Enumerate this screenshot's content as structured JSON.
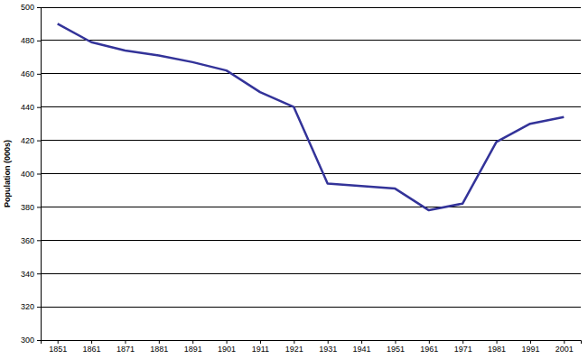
{
  "chart_data": {
    "type": "line",
    "y_label": "Population (000s)",
    "x": [
      1851,
      1861,
      1871,
      1881,
      1891,
      1901,
      1911,
      1921,
      1931,
      1951,
      1961,
      1971,
      1981,
      1991,
      2001
    ],
    "values": [
      490,
      479,
      474,
      471,
      467,
      462,
      449,
      440,
      394,
      391,
      378,
      382,
      419,
      430,
      434
    ],
    "color": "#333399",
    "xlim": [
      1846,
      2006
    ],
    "xticks": [
      1851,
      1861,
      1871,
      1881,
      1891,
      1901,
      1911,
      1921,
      1931,
      1941,
      1951,
      1961,
      1971,
      1981,
      1991,
      2001
    ],
    "ylim": [
      300,
      500
    ],
    "yticks": [
      300,
      320,
      340,
      360,
      380,
      400,
      420,
      440,
      460,
      480,
      500
    ],
    "grid": true
  }
}
